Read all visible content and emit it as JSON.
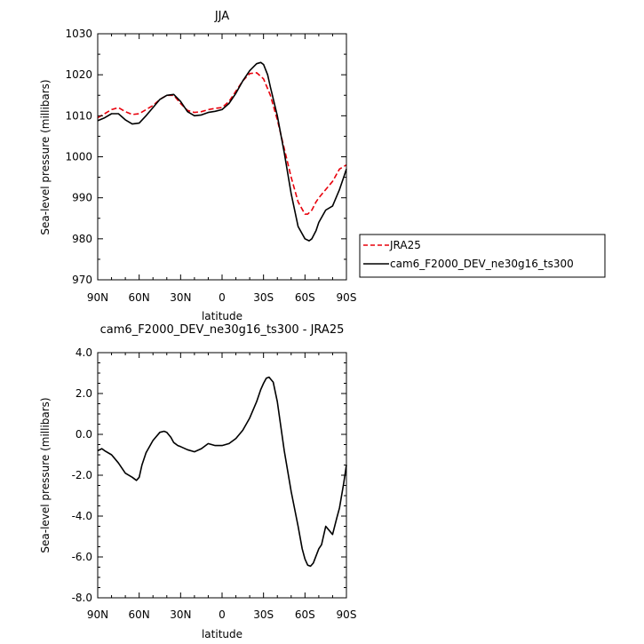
{
  "chart_data": [
    {
      "type": "line",
      "title": "JJA",
      "xlabel": "latitude",
      "ylabel": "Sea-level pressure (millibars)",
      "xticks": [
        "90N",
        "60N",
        "30N",
        "0",
        "30S",
        "60S",
        "90S"
      ],
      "xlim": [
        90,
        -90
      ],
      "ylim": [
        970,
        1030
      ],
      "yticks": [
        "970",
        "980",
        "990",
        "1000",
        "1010",
        "1020",
        "1030"
      ],
      "legend_position": "right",
      "series": [
        {
          "name": "JRA25",
          "color": "#e8000b",
          "dash": "dashed",
          "x": [
            90,
            85,
            80,
            75,
            70,
            65,
            60,
            55,
            50,
            45,
            40,
            35,
            30,
            25,
            20,
            15,
            10,
            5,
            0,
            -5,
            -10,
            -15,
            -20,
            -25,
            -30,
            -35,
            -40,
            -45,
            -50,
            -55,
            -60,
            -62,
            -65,
            -68,
            -70,
            -75,
            -80,
            -85,
            -90
          ],
          "y": [
            1009.5,
            1010.5,
            1011.5,
            1012,
            1011,
            1010.3,
            1010.5,
            1011.5,
            1012.5,
            1014,
            1015,
            1015,
            1013,
            1011.3,
            1010.8,
            1011,
            1011.5,
            1011.8,
            1012,
            1013.5,
            1016,
            1018.5,
            1020.3,
            1020.5,
            1019,
            1015,
            1009,
            1002,
            995,
            989,
            986,
            986,
            987,
            989,
            990,
            992,
            994,
            997,
            998
          ]
        },
        {
          "name": "cam6_F2000_DEV_ne30g16_ts300",
          "color": "#000000",
          "dash": "solid",
          "x": [
            90,
            85,
            80,
            75,
            70,
            65,
            60,
            55,
            50,
            45,
            40,
            35,
            30,
            25,
            20,
            15,
            10,
            5,
            0,
            -5,
            -10,
            -15,
            -20,
            -25,
            -28,
            -30,
            -33,
            -35,
            -40,
            -45,
            -50,
            -55,
            -60,
            -63,
            -65,
            -68,
            -70,
            -75,
            -80,
            -85,
            -88,
            -90
          ],
          "y": [
            1008.8,
            1009.5,
            1010.5,
            1010.5,
            1009,
            1008,
            1008.2,
            1010,
            1012,
            1014,
            1015,
            1015.2,
            1013.5,
            1011,
            1010,
            1010.2,
            1010.8,
            1011.1,
            1011.5,
            1013,
            1015.5,
            1018.5,
            1021,
            1022.7,
            1023,
            1022.5,
            1020,
            1017,
            1010,
            1001,
            991,
            983,
            980,
            979.5,
            980,
            982,
            984,
            987,
            988,
            992,
            995,
            997
          ]
        }
      ]
    },
    {
      "type": "line",
      "title": "cam6_F2000_DEV_ne30g16_ts300 - JRA25",
      "xlabel": "latitude",
      "ylabel": "Sea-level pressure (millibars)",
      "xticks": [
        "90N",
        "60N",
        "30N",
        "0",
        "30S",
        "60S",
        "90S"
      ],
      "xlim": [
        90,
        -90
      ],
      "ylim": [
        -8,
        4
      ],
      "yticks": [
        "-8.0",
        "-6.0",
        "-4.0",
        "-2.0",
        "0.0",
        "2.0",
        "4.0"
      ],
      "series": [
        {
          "color": "#000000",
          "x": [
            90,
            87,
            85,
            80,
            75,
            70,
            65,
            62,
            60,
            58,
            55,
            50,
            45,
            42,
            40,
            37,
            35,
            32,
            30,
            25,
            20,
            15,
            10,
            5,
            0,
            -5,
            -10,
            -15,
            -20,
            -25,
            -28,
            -30,
            -32,
            -34,
            -37,
            -40,
            -45,
            -50,
            -55,
            -58,
            -60,
            -62,
            -64,
            -66,
            -70,
            -72,
            -75,
            -80,
            -83,
            -85,
            -88,
            -90
          ],
          "y": [
            -0.8,
            -0.7,
            -0.8,
            -1.0,
            -1.4,
            -1.9,
            -2.1,
            -2.25,
            -2.1,
            -1.5,
            -0.9,
            -0.3,
            0.1,
            0.15,
            0.1,
            -0.15,
            -0.4,
            -0.55,
            -0.6,
            -0.75,
            -0.85,
            -0.7,
            -0.45,
            -0.55,
            -0.55,
            -0.45,
            -0.2,
            0.2,
            0.8,
            1.6,
            2.2,
            2.5,
            2.75,
            2.8,
            2.55,
            1.6,
            -0.8,
            -2.8,
            -4.5,
            -5.6,
            -6.1,
            -6.4,
            -6.45,
            -6.3,
            -5.6,
            -5.4,
            -4.5,
            -4.9,
            -4.1,
            -3.6,
            -2.4,
            -1.5
          ]
        }
      ]
    }
  ]
}
